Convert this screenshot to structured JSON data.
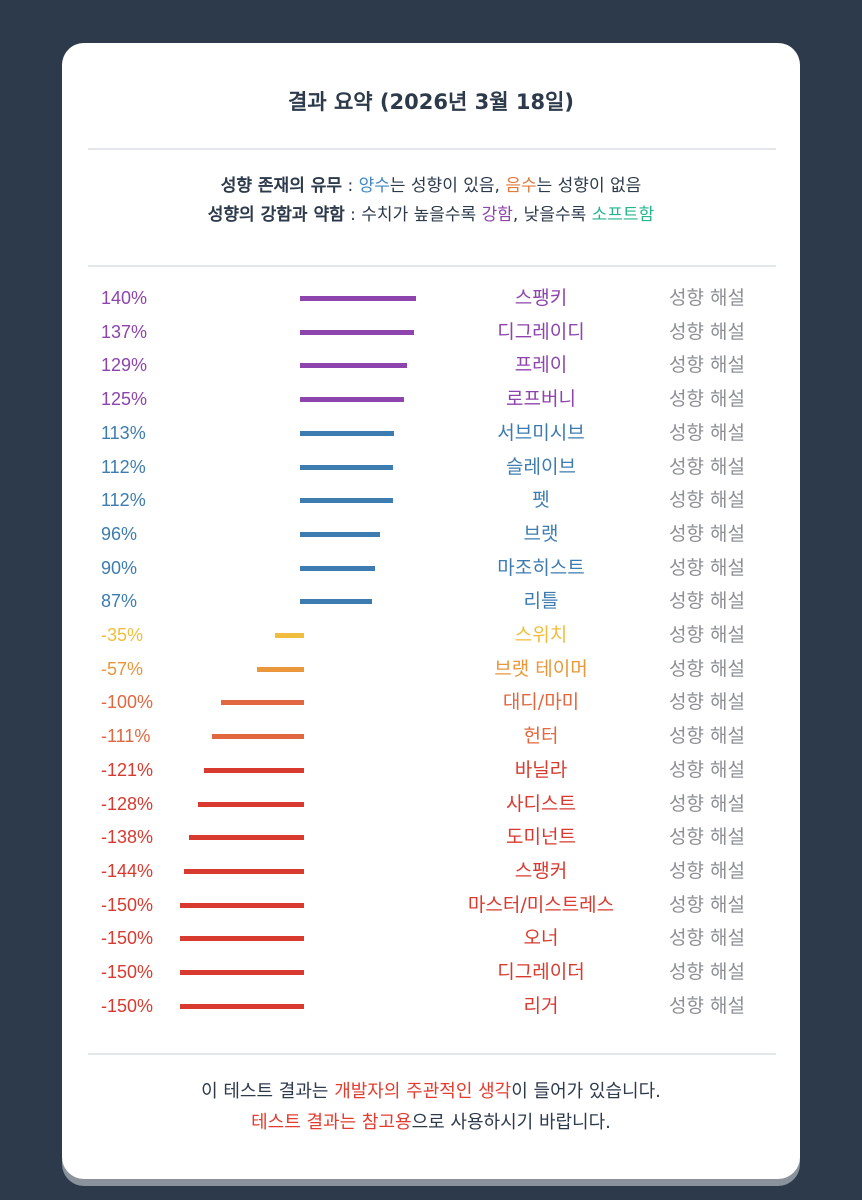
{
  "title": "결과 요약 (2026년 3월 18일)",
  "legend": {
    "line1": {
      "label": "성향 존재의 유무",
      "sep": " : ",
      "pos_word": "양수",
      "pos_text": "는 성향이 있음, ",
      "neg_word": "음수",
      "neg_text": "는 성향이 없음"
    },
    "line2": {
      "label": "성향의 강함과 약함",
      "sep": " : ",
      "text1": "수치가 높을수록 ",
      "strong_word": "강함",
      "text2": ", 낮을수록 ",
      "soft_word": "소프트함"
    }
  },
  "detail_label": "성향 해설",
  "footer": {
    "l1_a": "이 테스트 결과는 ",
    "l1_b": "개발자의 주관적인 생각",
    "l1_c": "이 들어가 있습니다.",
    "l2_a": "테스트 결과는 참고용",
    "l2_b": "으로 사용하시기 바랍니다."
  },
  "colors": {
    "purple": "#8e44ad",
    "blue": "#3d7cb0",
    "yellow": "#f0be3c",
    "orange": "#e9973a",
    "orange_red": "#e0673f",
    "red": "#d93a2f"
  },
  "chart_data": {
    "type": "bar",
    "orientation": "horizontal",
    "unit": "%",
    "categories": [
      "스팽키",
      "디그레이디",
      "프레이",
      "로프버니",
      "서브미시브",
      "슬레이브",
      "펫",
      "브랫",
      "마조히스트",
      "리틀",
      "스위치",
      "브랫 테이머",
      "대디/마미",
      "헌터",
      "바닐라",
      "사디스트",
      "도미넌트",
      "스팽커",
      "마스터/미스트레스",
      "오너",
      "디그레이더",
      "리거"
    ],
    "values": [
      140,
      137,
      129,
      125,
      113,
      112,
      112,
      96,
      90,
      87,
      -35,
      -57,
      -100,
      -111,
      -121,
      -128,
      -138,
      -144,
      -150,
      -150,
      -150,
      -150
    ],
    "labels": [
      "140%",
      "137%",
      "129%",
      "125%",
      "113%",
      "112%",
      "112%",
      "96%",
      "90%",
      "87%",
      "-35%",
      "-57%",
      "-100%",
      "-111%",
      "-121%",
      "-128%",
      "-138%",
      "-144%",
      "-150%",
      "-150%",
      "-150%",
      "-150%"
    ],
    "colors": [
      "#8e44ad",
      "#8e44ad",
      "#8e44ad",
      "#8e44ad",
      "#3d7cb0",
      "#3d7cb0",
      "#3d7cb0",
      "#3d7cb0",
      "#3d7cb0",
      "#3d7cb0",
      "#f0be3c",
      "#e9973a",
      "#e0673f",
      "#e0673f",
      "#d93a2f",
      "#d93a2f",
      "#d93a2f",
      "#d93a2f",
      "#d93a2f",
      "#d93a2f",
      "#d93a2f",
      "#d93a2f"
    ],
    "grid": false
  }
}
